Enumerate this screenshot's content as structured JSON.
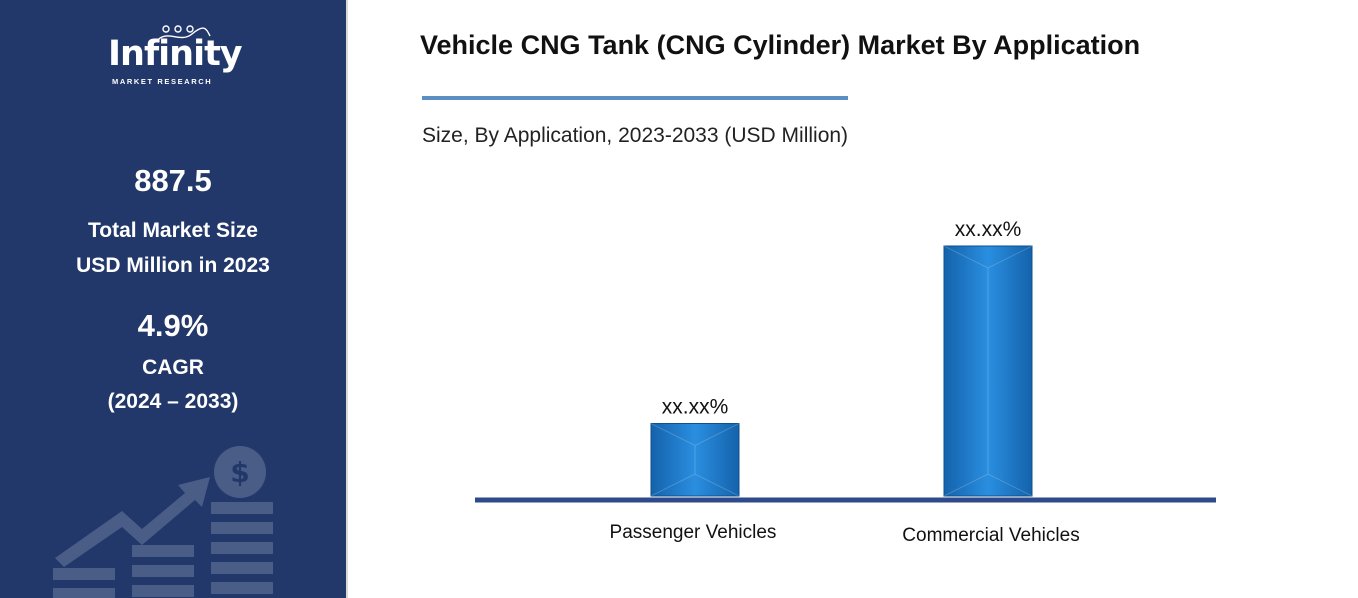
{
  "brand": {
    "name": "Infinity",
    "tagline": "MARKET RESEARCH"
  },
  "sidebar": {
    "market_size": {
      "value": "887.5",
      "label_line1": "Total Market Size",
      "label_line2": "USD Million in 2023"
    },
    "cagr": {
      "value": "4.9%",
      "label_line1": "CAGR",
      "label_line2": "(2024 – 2033)"
    }
  },
  "colors": {
    "sidebar_bg": "#22386a",
    "bar": "#1b78c8",
    "axis": "#2e4a8a",
    "title_rule": "#5b8fc2"
  },
  "icons": [
    "dollar-coin-icon",
    "growth-arrow-icon",
    "stacked-bars-icon"
  ],
  "chart_data": {
    "type": "bar",
    "title": "Vehicle CNG Tank (CNG Cylinder) Market By Application",
    "subtitle": "Size, By Application, 2023-2033 (USD Million)",
    "categories": [
      "Passenger Vehicles",
      "Commercial Vehicles"
    ],
    "values": [
      29,
      100
    ],
    "value_scale": "relative (unlabeled axis)",
    "data_labels": [
      "xx.xx%",
      "xx.xx%"
    ],
    "ylim": [
      0,
      100
    ],
    "grid": false,
    "legend": "none"
  }
}
